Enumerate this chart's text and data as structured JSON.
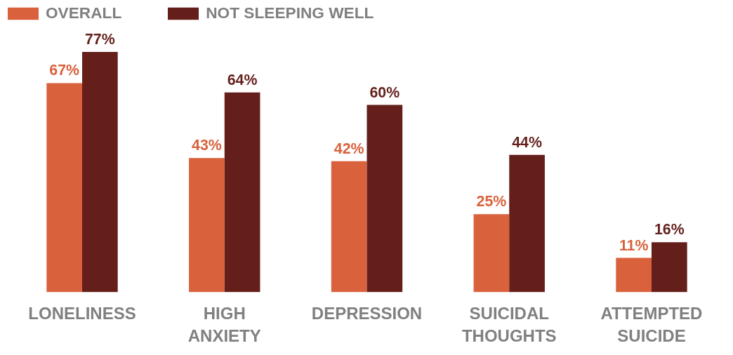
{
  "chart_data": {
    "type": "bar",
    "categories": [
      "LONELINESS",
      "HIGH ANXIETY",
      "DEPRESSION",
      "SUICIDAL THOUGHTS",
      "ATTEMPTED SUICIDE"
    ],
    "series": [
      {
        "name": "OVERALL",
        "color": "#d9623c",
        "values": [
          67,
          43,
          42,
          25,
          11
        ],
        "value_labels": [
          "67%",
          "43%",
          "42%",
          "25%",
          "11%"
        ]
      },
      {
        "name": "NOT SLEEPING WELL",
        "color": "#641f1b",
        "values": [
          77,
          64,
          60,
          44,
          16
        ],
        "value_labels": [
          "77%",
          "64%",
          "60%",
          "44%",
          "16%"
        ]
      }
    ],
    "legend": "top left",
    "grid": false
  }
}
